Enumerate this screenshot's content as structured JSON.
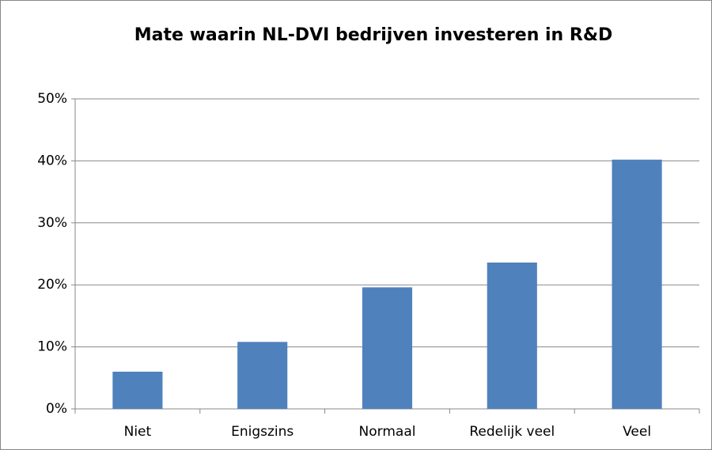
{
  "chart_data": {
    "type": "bar",
    "title": "Mate waarin NL-DVI bedrijven investeren in R&D",
    "categories": [
      "Niet",
      "Enigszins",
      "Normaal",
      "Redelijk veel",
      "Veel"
    ],
    "values": [
      6.0,
      10.8,
      19.6,
      23.6,
      40.2
    ],
    "color": "#4f81bd",
    "ylim": [
      0,
      50
    ],
    "yticks": [
      {
        "value": 0,
        "label": "0%"
      },
      {
        "value": 10,
        "label": "10%"
      },
      {
        "value": 20,
        "label": "20%"
      },
      {
        "value": 30,
        "label": "30%"
      },
      {
        "value": 40,
        "label": "40%"
      },
      {
        "value": 50,
        "label": "50%"
      }
    ],
    "grid": true
  }
}
